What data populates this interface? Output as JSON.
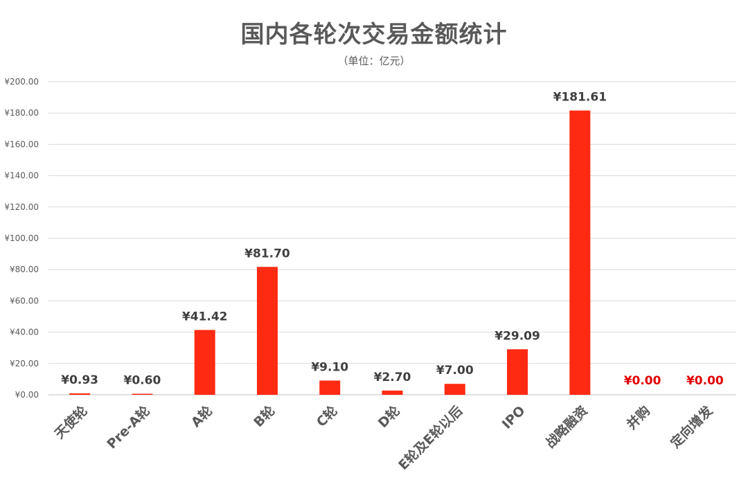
{
  "chart_data": {
    "type": "bar",
    "title": "国内各轮次交易金额统计",
    "subtitle": "（单位：亿元）",
    "categories": [
      "天使轮",
      "Pre-A轮",
      "A轮",
      "B轮",
      "C轮",
      "D轮",
      "E轮及E轮以后",
      "IPO",
      "战略融资",
      "并购",
      "定向增发"
    ],
    "values": [
      0.93,
      0.6,
      41.42,
      81.7,
      9.1,
      2.7,
      7.0,
      29.09,
      181.61,
      0.0,
      0.0
    ],
    "data_labels": [
      "¥0.93",
      "¥0.60",
      "¥41.42",
      "¥81.70",
      "¥9.10",
      "¥2.70",
      "¥7.00",
      "¥29.09",
      "¥181.61",
      "¥0.00",
      "¥0.00"
    ],
    "y_ticks": [
      "¥0.00",
      "¥20.00",
      "¥40.00",
      "¥60.00",
      "¥80.00",
      "¥100.00",
      "¥120.00",
      "¥140.00",
      "¥160.00",
      "¥180.00",
      "¥200.00"
    ],
    "ylim": [
      0,
      200
    ],
    "grid": true,
    "bar_color": "#ff2a12",
    "label_color": "#3f3f3f",
    "zero_label_color": "#e00000",
    "gridline_color": "#d9d9d9"
  }
}
